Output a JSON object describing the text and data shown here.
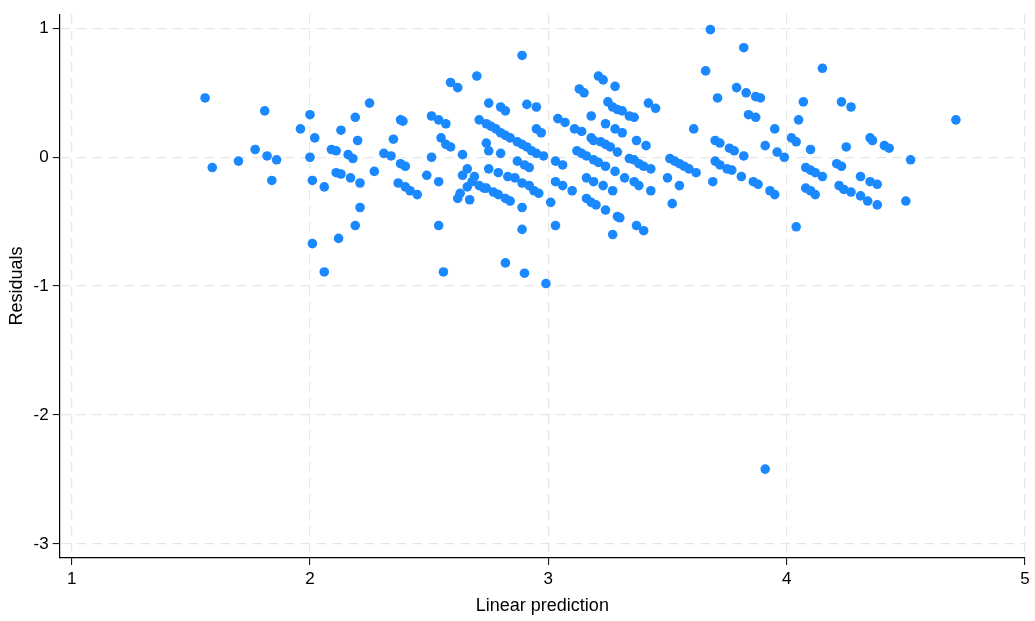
{
  "chart_data": {
    "type": "scatter",
    "xlabel": "Linear prediction",
    "ylabel": "Residuals",
    "xlim": [
      0.95,
      5
    ],
    "ylim": [
      -3.11,
      1.11
    ],
    "xticks": [
      1,
      2,
      3,
      4,
      5
    ],
    "yticks": [
      -3,
      -2,
      -1,
      0,
      1
    ],
    "grid": true,
    "legend": false,
    "marker": "circle",
    "series": [
      {
        "color": "#1a88ff",
        "x": [
          1.56,
          1.59,
          1.7,
          1.77,
          1.81,
          1.82,
          1.86,
          1.84,
          1.96,
          2.0,
          2.0,
          2.02,
          2.01,
          2.06,
          2.01,
          2.06,
          2.09,
          2.11,
          2.11,
          2.13,
          2.12,
          2.13,
          2.16,
          2.18,
          2.17,
          2.19,
          2.19,
          2.21,
          2.21,
          2.25,
          2.27,
          2.2,
          2.31,
          2.34,
          2.35,
          2.38,
          2.39,
          2.37,
          2.38,
          2.4,
          2.4,
          2.42,
          2.45,
          2.49,
          2.51,
          2.51,
          2.54,
          2.55,
          2.57,
          2.54,
          2.54,
          2.56,
          2.59,
          2.62,
          2.57,
          2.59,
          2.64,
          2.62,
          2.63,
          2.66,
          2.66,
          2.67,
          2.69,
          2.73,
          2.7,
          2.74,
          2.75,
          2.71,
          2.74,
          2.76,
          2.78,
          2.8,
          2.82,
          2.84,
          2.87,
          2.89,
          2.91,
          2.93,
          2.95,
          2.98,
          2.64,
          2.68,
          2.71,
          2.74,
          2.77,
          2.79,
          2.82,
          2.84,
          2.75,
          2.79,
          2.83,
          2.8,
          2.75,
          2.8,
          2.82,
          2.89,
          2.91,
          2.95,
          2.82,
          2.9,
          2.99,
          2.89,
          2.89,
          2.95,
          2.97,
          2.86,
          2.89,
          2.92,
          2.94,
          2.96,
          2.87,
          2.9,
          2.92,
          3.01,
          3.03,
          3.03,
          3.06,
          3.03,
          3.06,
          3.04,
          3.07,
          3.1,
          3.13,
          3.15,
          3.11,
          3.14,
          3.21,
          3.23,
          3.28,
          3.25,
          3.27,
          3.29,
          3.31,
          3.34,
          3.36,
          3.42,
          3.45,
          3.18,
          3.24,
          3.28,
          3.31,
          3.37,
          3.41,
          3.18,
          3.19,
          3.22,
          3.24,
          3.26,
          3.29,
          3.12,
          3.14,
          3.16,
          3.19,
          3.21,
          3.24,
          3.34,
          3.36,
          3.38,
          3.4,
          3.43,
          3.28,
          3.51,
          3.53,
          3.55,
          3.57,
          3.59,
          3.62,
          3.16,
          3.19,
          3.23,
          3.27,
          3.32,
          3.36,
          3.38,
          3.43,
          3.5,
          3.55,
          3.52,
          3.16,
          3.18,
          3.2,
          3.24,
          3.29,
          3.3,
          3.27,
          3.37,
          3.4,
          3.66,
          3.61,
          3.71,
          3.79,
          3.83,
          3.87,
          3.89,
          3.84,
          3.87,
          3.7,
          3.72,
          3.76,
          3.78,
          3.82,
          3.7,
          3.72,
          3.75,
          3.77,
          3.81,
          3.69,
          3.86,
          3.88,
          3.93,
          3.95,
          3.91,
          3.95,
          3.96,
          3.68,
          3.82,
          4.15,
          4.07,
          4.23,
          4.27,
          4.05,
          4.02,
          4.04,
          3.99,
          4.1,
          4.25,
          4.35,
          4.36,
          4.41,
          4.43,
          4.52,
          4.08,
          4.1,
          4.12,
          4.15,
          4.21,
          4.23,
          4.31,
          4.35,
          4.38,
          4.08,
          4.1,
          4.12,
          4.22,
          4.24,
          4.27,
          4.31,
          4.34,
          4.38,
          4.5,
          4.04,
          4.71,
          3.91
        ],
        "values": [
          0.46,
          -0.08,
          -0.03,
          0.06,
          0.36,
          0.01,
          -0.02,
          -0.18,
          0.22,
          0.33,
          0.0,
          0.15,
          -0.18,
          -0.23,
          -0.67,
          -0.89,
          0.06,
          0.05,
          -0.12,
          0.21,
          -0.63,
          -0.13,
          0.02,
          -0.01,
          -0.16,
          -0.53,
          0.31,
          -0.2,
          -0.39,
          0.42,
          -0.11,
          0.13,
          0.03,
          0.01,
          0.14,
          0.29,
          0.28,
          -0.2,
          -0.05,
          -0.07,
          -0.23,
          -0.26,
          -0.29,
          -0.14,
          0.0,
          0.32,
          0.29,
          0.15,
          0.26,
          -0.19,
          -0.53,
          -0.89,
          0.58,
          0.54,
          0.1,
          0.08,
          0.02,
          -0.32,
          -0.28,
          -0.09,
          -0.23,
          -0.33,
          -0.15,
          -0.24,
          0.63,
          0.11,
          0.05,
          0.29,
          0.26,
          0.24,
          0.22,
          0.19,
          0.17,
          0.15,
          0.12,
          0.1,
          0.08,
          0.05,
          0.03,
          0.01,
          -0.14,
          -0.19,
          -0.22,
          -0.24,
          -0.27,
          -0.29,
          -0.32,
          -0.34,
          -0.09,
          -0.12,
          -0.15,
          0.03,
          0.42,
          0.39,
          0.36,
          0.79,
          0.41,
          0.39,
          -0.82,
          -0.9,
          -0.98,
          -0.56,
          -0.39,
          0.22,
          0.19,
          -0.16,
          -0.2,
          -0.22,
          -0.26,
          -0.28,
          -0.03,
          -0.06,
          -0.08,
          -0.35,
          -0.53,
          -0.03,
          -0.06,
          -0.19,
          -0.22,
          0.3,
          0.27,
          -0.26,
          0.53,
          0.5,
          0.22,
          0.2,
          0.63,
          0.6,
          0.55,
          0.43,
          0.39,
          0.37,
          0.36,
          0.32,
          0.31,
          0.42,
          0.38,
          0.32,
          0.26,
          0.22,
          0.19,
          0.13,
          0.09,
          0.15,
          0.13,
          0.12,
          0.1,
          0.08,
          0.04,
          0.05,
          0.03,
          0.01,
          -0.02,
          -0.04,
          -0.07,
          -0.01,
          -0.02,
          -0.05,
          -0.07,
          -0.09,
          -0.11,
          -0.01,
          -0.03,
          -0.05,
          -0.07,
          -0.09,
          -0.12,
          -0.16,
          -0.19,
          -0.22,
          -0.26,
          -0.16,
          -0.19,
          -0.22,
          -0.26,
          -0.16,
          -0.22,
          -0.36,
          -0.32,
          -0.35,
          -0.37,
          -0.41,
          -0.46,
          -0.47,
          -0.6,
          -0.53,
          -0.57,
          0.67,
          0.22,
          0.46,
          0.54,
          0.5,
          0.47,
          0.46,
          0.33,
          0.31,
          0.13,
          0.11,
          0.07,
          0.05,
          0.01,
          -0.03,
          -0.06,
          -0.09,
          -0.1,
          -0.15,
          -0.19,
          -0.19,
          -0.21,
          -0.26,
          -0.29,
          0.09,
          0.22,
          0.04,
          0.99,
          0.85,
          0.69,
          0.43,
          0.43,
          0.39,
          0.29,
          0.15,
          0.12,
          0.0,
          0.06,
          0.08,
          0.15,
          0.13,
          0.09,
          0.07,
          -0.02,
          -0.08,
          -0.1,
          -0.12,
          -0.15,
          -0.05,
          -0.07,
          -0.15,
          -0.19,
          -0.21,
          -0.24,
          -0.26,
          -0.29,
          -0.22,
          -0.25,
          -0.27,
          -0.3,
          -0.34,
          -0.37,
          -0.34,
          -0.54,
          0.29,
          -2.42
        ]
      }
    ]
  }
}
